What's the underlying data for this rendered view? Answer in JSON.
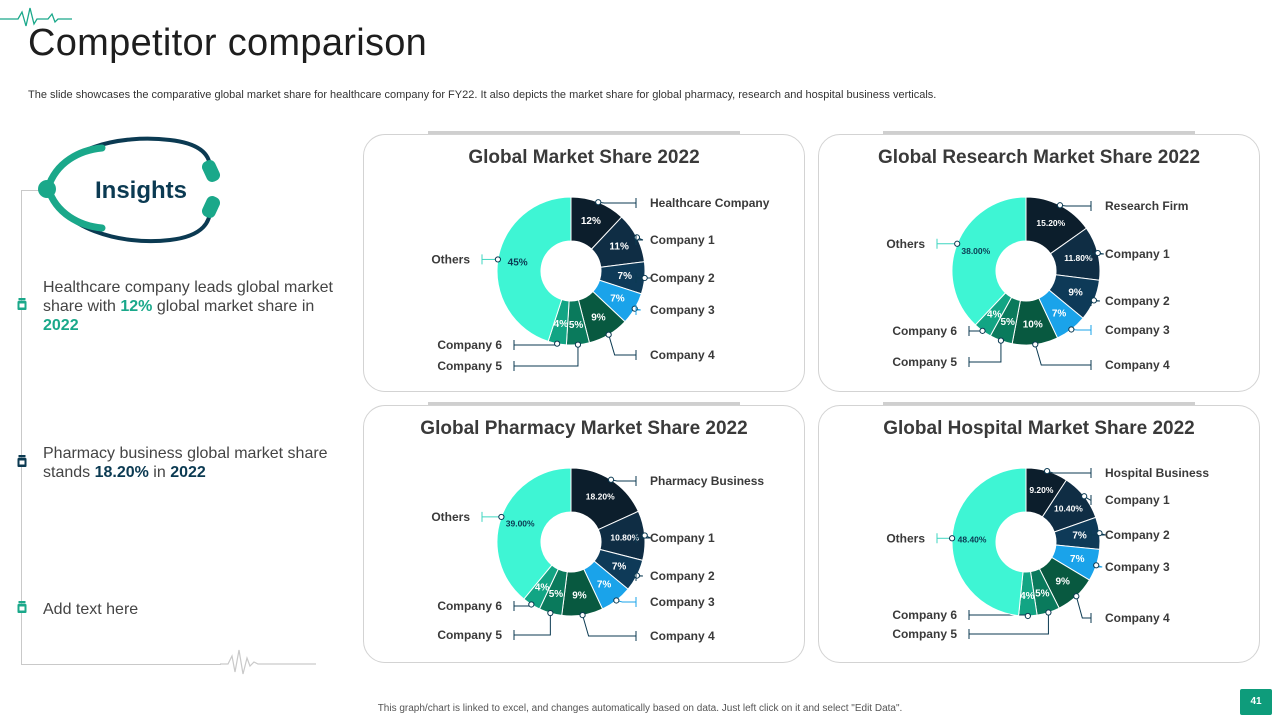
{
  "header": {
    "title": "Competitor comparison",
    "subtitle": "The slide showcases the comparative global market share for healthcare company for FY22. It also depicts the market share for global pharmacy, research and hospital business verticals."
  },
  "insights": {
    "heading": "Insights",
    "items": [
      {
        "pre": "Healthcare company leads global market share with ",
        "hl1": "12%",
        "mid": " global market share in ",
        "hl2": "2022"
      },
      {
        "pre": "Pharmacy business global market share stands ",
        "hl1": "18.20%",
        "mid": " in ",
        "hl2": "2022"
      },
      {
        "text": "Add text here"
      }
    ]
  },
  "footer": {
    "note": "This graph/chart is linked to excel, and changes automatically based on data. Just left click on it and select \"Edit Data\".",
    "page_number": "41"
  },
  "colors": {
    "first": "#0c1e2c",
    "second": "#0f2d44",
    "third": "#0e3a58",
    "fourth": "#1aa3ea",
    "fifth": "#085940",
    "sixth": "#0a7a5c",
    "seventh": "#12a584",
    "others": "#3ef5d4",
    "accent": "#0e9c7b",
    "navy": "#0b3a52"
  },
  "chart_data": [
    {
      "type": "pie",
      "title": "Global Market Share 2022",
      "categories": [
        "Healthcare Company",
        "Company 1",
        "Company 2",
        "Company 3",
        "Company 4",
        "Company 5",
        "Company 6",
        "Others"
      ],
      "values": [
        12,
        11,
        7,
        7,
        9,
        5,
        4,
        45
      ],
      "labels": [
        "12%",
        "11%",
        "7%",
        "7%",
        "9%",
        "5%",
        "4%",
        "45%"
      ]
    },
    {
      "type": "pie",
      "title": "Global Research Market Share 2022",
      "categories": [
        "Research Firm",
        "Company 1",
        "Company 2",
        "Company 3",
        "Company 4",
        "Company 5",
        "Company 6",
        "Others"
      ],
      "values": [
        15.2,
        11.8,
        9,
        7,
        10,
        5,
        4,
        38
      ],
      "labels": [
        "15.20%",
        "11.80%",
        "9%",
        "7%",
        "10%",
        "5%",
        "4%",
        "38.00%"
      ]
    },
    {
      "type": "pie",
      "title": "Global Pharmacy Market Share 2022",
      "categories": [
        "Pharmacy Business",
        "Company 1",
        "Company 2",
        "Company 3",
        "Company 4",
        "Company 5",
        "Company 6",
        "Others"
      ],
      "values": [
        18.2,
        10.8,
        7,
        7,
        9,
        5,
        4,
        39
      ],
      "labels": [
        "18.20%",
        "10.80%",
        "7%",
        "7%",
        "9%",
        "5%",
        "4%",
        "39.00%"
      ]
    },
    {
      "type": "pie",
      "title": "Global Hospital Market Share 2022",
      "categories": [
        "Hospital Business",
        "Company 1",
        "Company 2",
        "Company 3",
        "Company 4",
        "Company 5",
        "Company 6",
        "Others"
      ],
      "values": [
        9.2,
        10.4,
        7,
        7,
        9,
        5,
        4,
        48.4
      ],
      "labels": [
        "9.20%",
        "10.40%",
        "7%",
        "7%",
        "9%",
        "5%",
        "4%",
        "48.40%"
      ]
    }
  ]
}
